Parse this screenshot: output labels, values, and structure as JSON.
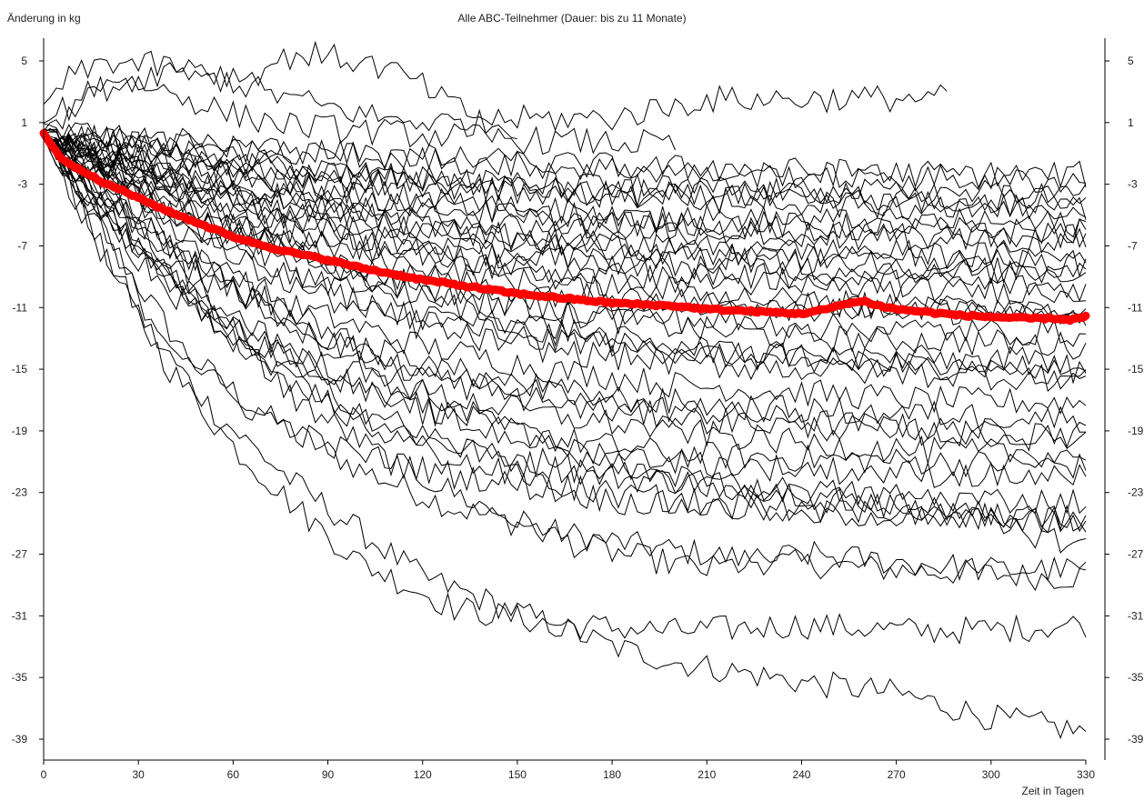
{
  "chart_data": {
    "type": "line",
    "title": "Alle ABC-Teilnehmer (Dauer: bis zu 11 Monate)",
    "ylabel": "Änderung in kg",
    "xlabel": "Zeit in Tagen",
    "xlim": [
      0,
      330
    ],
    "ylim": [
      -40,
      6
    ],
    "xticks": [
      0,
      30,
      60,
      90,
      120,
      150,
      180,
      210,
      240,
      270,
      300,
      330
    ],
    "yticks": [
      5,
      1,
      -3,
      -7,
      -11,
      -15,
      -19,
      -23,
      -27,
      -31,
      -35,
      -39
    ],
    "grid": false,
    "mean_color": "#ff0000",
    "participant_color": "#000000",
    "mean_series": {
      "x": [
        0,
        5,
        10,
        15,
        20,
        25,
        30,
        40,
        50,
        60,
        70,
        80,
        90,
        100,
        110,
        120,
        130,
        140,
        150,
        160,
        170,
        180,
        190,
        200,
        210,
        220,
        230,
        240,
        248,
        255,
        260,
        265,
        270,
        280,
        290,
        300,
        310,
        320,
        325,
        330
      ],
      "y": [
        0.3,
        -1.2,
        -1.9,
        -2.4,
        -3.0,
        -3.4,
        -3.9,
        -4.8,
        -5.6,
        -6.4,
        -7.0,
        -7.5,
        -7.9,
        -8.4,
        -8.8,
        -9.2,
        -9.5,
        -9.8,
        -10.1,
        -10.3,
        -10.5,
        -10.7,
        -10.8,
        -10.9,
        -11.1,
        -11.2,
        -11.3,
        -11.4,
        -11.1,
        -10.7,
        -10.6,
        -10.9,
        -11.1,
        -11.3,
        -11.5,
        -11.6,
        -11.7,
        -11.7,
        -11.8,
        -11.6
      ]
    },
    "participant_series": [
      {
        "x": [
          0,
          10,
          25,
          45,
          70,
          100,
          130,
          160,
          190,
          230,
          270,
          300,
          320,
          330
        ],
        "y": [
          0,
          -3,
          -8,
          -14,
          -18,
          -21.5,
          -24,
          -25.5,
          -26.5,
          -27.5,
          -28,
          -28.3,
          -28.5,
          -28.4
        ]
      },
      {
        "x": [
          0,
          15,
          35,
          55,
          80,
          100,
          120,
          140,
          160,
          180,
          200,
          240,
          270,
          300,
          330
        ],
        "y": [
          0,
          -6,
          -13,
          -18,
          -22.5,
          -25.5,
          -28.5,
          -30,
          -31.5,
          -33,
          -34,
          -35.3,
          -36,
          -37.6,
          -38.5
        ]
      },
      {
        "x": [
          0,
          10,
          25,
          40,
          60,
          80,
          100,
          130,
          160,
          200,
          240,
          280,
          310,
          330
        ],
        "y": [
          0,
          -4,
          -10,
          -15,
          -20,
          -24,
          -27.5,
          -30.5,
          -31.5,
          -32,
          -31.6,
          -32,
          -31.8,
          -31.5
        ]
      },
      {
        "x": [
          0,
          20,
          50,
          80,
          110,
          140,
          170,
          210,
          240,
          270,
          300,
          330
        ],
        "y": [
          0,
          -5,
          -11,
          -17,
          -21,
          -24,
          -26.5,
          -28,
          -27,
          -27.5,
          -28,
          -28
        ]
      },
      {
        "x": [
          0,
          15,
          35,
          60,
          90,
          120,
          150,
          180,
          220,
          260,
          300,
          330
        ],
        "y": [
          0,
          -4,
          -9,
          -13.5,
          -17,
          -19.5,
          -21,
          -22,
          -22.5,
          -23.5,
          -24.5,
          -25
        ]
      },
      {
        "x": [
          0,
          10,
          30,
          60,
          100,
          130,
          160,
          200,
          240,
          280,
          330
        ],
        "y": [
          0,
          -3,
          -8,
          -12.5,
          -16,
          -18,
          -19.5,
          -20.5,
          -20.8,
          -21,
          -21.3
        ]
      },
      {
        "x": [
          0,
          20,
          50,
          90,
          130,
          170,
          210,
          250,
          290,
          330
        ],
        "y": [
          0,
          -4,
          -9,
          -13,
          -15.5,
          -17,
          -17.8,
          -18.5,
          -19,
          -19.2
        ]
      },
      {
        "x": [
          0,
          10,
          40,
          80,
          120,
          160,
          200,
          240,
          280,
          330
        ],
        "y": [
          0,
          -2.5,
          -7,
          -11,
          -13.5,
          -15,
          -16,
          -16.5,
          -17,
          -17.2
        ]
      },
      {
        "x": [
          0,
          15,
          45,
          85,
          125,
          165,
          205,
          245,
          285,
          330
        ],
        "y": [
          0,
          -2,
          -5.5,
          -9,
          -11.5,
          -13,
          -14,
          -14.5,
          -14.8,
          -15
        ]
      },
      {
        "x": [
          0,
          20,
          50,
          90,
          130,
          170,
          210,
          250,
          290,
          330
        ],
        "y": [
          0,
          -2,
          -5,
          -8,
          -10,
          -11.5,
          -12.5,
          -13,
          -13.2,
          -13.5
        ]
      },
      {
        "x": [
          0,
          15,
          40,
          80,
          120,
          160,
          200,
          240,
          280,
          330
        ],
        "y": [
          0,
          -1.5,
          -4,
          -6.5,
          -8.5,
          -9.5,
          -10.5,
          -11,
          -11.2,
          -11.5
        ]
      },
      {
        "x": [
          0,
          20,
          50,
          90,
          130,
          170,
          210,
          250,
          290,
          330
        ],
        "y": [
          0,
          -1.2,
          -3.5,
          -5.5,
          -7,
          -8,
          -8.8,
          -9.3,
          -9.5,
          -9.7
        ]
      },
      {
        "x": [
          0,
          15,
          45,
          85,
          125,
          165,
          205,
          245,
          285,
          330
        ],
        "y": [
          0,
          -1,
          -2.8,
          -4.5,
          -5.8,
          -6.8,
          -7.4,
          -7.8,
          -8,
          -8.2
        ]
      },
      {
        "x": [
          0,
          20,
          50,
          90,
          130,
          170,
          210,
          250,
          290,
          330
        ],
        "y": [
          0,
          -0.8,
          -2,
          -3.2,
          -4.2,
          -5,
          -5.5,
          -5.8,
          -6,
          -6.1
        ]
      },
      {
        "x": [
          0,
          15,
          45,
          85,
          125,
          165,
          205,
          245,
          285,
          330
        ],
        "y": [
          0.5,
          0,
          -1,
          -2,
          -2.8,
          -3.5,
          -3.9,
          -4.2,
          -4.4,
          -4.5
        ]
      },
      {
        "x": [
          0,
          10,
          30,
          70,
          110,
          150,
          190,
          230,
          270,
          330
        ],
        "y": [
          1,
          0.5,
          -0.2,
          -0.8,
          -1.2,
          -1.6,
          -1.9,
          -2.1,
          -2.3,
          -2.4
        ]
      },
      {
        "x": [
          0,
          10,
          20,
          40,
          60,
          80,
          100,
          120,
          140,
          160,
          180,
          200
        ],
        "y": [
          0.5,
          2,
          4,
          3,
          1.5,
          0.8,
          0.5,
          0.2,
          0,
          -0.2,
          -0.3,
          -0.4
        ]
      },
      {
        "x": [
          0,
          5,
          20,
          45,
          70,
          90,
          110,
          130,
          150
        ],
        "y": [
          2,
          3.5,
          5,
          4.5,
          3,
          2,
          1.2,
          1,
          0.8
        ]
      },
      {
        "x": [
          0,
          15,
          40,
          65,
          80,
          100,
          115,
          130,
          140,
          180,
          210,
          287
        ],
        "y": [
          1,
          3,
          4.5,
          4,
          5.5,
          5,
          4,
          2,
          1.2,
          1.3,
          2.5,
          2.6
        ]
      },
      {
        "x": [
          0,
          15,
          35,
          60,
          90,
          120,
          150,
          180,
          210,
          240,
          270,
          300,
          330
        ],
        "y": [
          0,
          -5,
          -12,
          -17,
          -20,
          -21.5,
          -22.5,
          -23.5,
          -24,
          -24.3,
          -24.5,
          -24.8,
          -25
        ]
      },
      {
        "x": [
          0,
          20,
          50,
          90,
          130,
          170,
          210,
          250,
          290,
          330
        ],
        "y": [
          0,
          -3.5,
          -8.5,
          -13.5,
          -17.5,
          -20.5,
          -22.5,
          -23.5,
          -24.5,
          -26.5
        ]
      },
      {
        "x": [
          0,
          12,
          30,
          55,
          85,
          120,
          160,
          200,
          240,
          280,
          330
        ],
        "y": [
          0,
          -3,
          -7.5,
          -11.5,
          -14.5,
          -16.5,
          -18,
          -19,
          -19.8,
          -20.3,
          -20.5
        ]
      },
      {
        "x": [
          0,
          25,
          60,
          100,
          140,
          180,
          220,
          260,
          300,
          330
        ],
        "y": [
          0,
          -2.5,
          -6,
          -9,
          -11.5,
          -13,
          -14,
          -14.6,
          -15.2,
          -15.5
        ]
      },
      {
        "x": [
          0,
          25,
          60,
          100,
          140,
          180,
          220,
          260,
          300,
          330
        ],
        "y": [
          0,
          -1.8,
          -4.2,
          -6.5,
          -8.3,
          -9.5,
          -10.3,
          -10.8,
          -11.1,
          -11.3
        ]
      },
      {
        "x": [
          0,
          25,
          60,
          100,
          140,
          180,
          220,
          260,
          300,
          330
        ],
        "y": [
          0,
          -1.5,
          -3.2,
          -5,
          -6.3,
          -7.2,
          -7.8,
          -8.2,
          -8.5,
          -8.7
        ]
      },
      {
        "x": [
          0,
          25,
          60,
          100,
          140,
          180,
          220,
          260,
          300,
          330
        ],
        "y": [
          0,
          -1,
          -2.5,
          -3.8,
          -4.8,
          -5.5,
          -6,
          -6.4,
          -6.6,
          -6.8
        ]
      },
      {
        "x": [
          0,
          25,
          60,
          100,
          140,
          180,
          220,
          260,
          300,
          330
        ],
        "y": [
          0,
          -0.6,
          -1.6,
          -2.5,
          -3.2,
          -3.7,
          -4,
          -4.3,
          -4.5,
          -4.6
        ]
      },
      {
        "x": [
          0,
          25,
          60,
          100,
          140,
          180,
          220,
          260,
          300,
          330
        ],
        "y": [
          0.5,
          0.2,
          -0.5,
          -1.1,
          -1.6,
          -2,
          -2.3,
          -2.5,
          -2.7,
          -2.8
        ]
      },
      {
        "x": [
          0,
          15,
          40,
          70,
          100,
          130,
          170,
          210,
          250,
          290,
          330
        ],
        "y": [
          0,
          -3.5,
          -9,
          -14,
          -17.5,
          -20,
          -21.5,
          -22.5,
          -23,
          -23.4,
          -23.6
        ]
      },
      {
        "x": [
          0,
          15,
          40,
          70,
          100,
          130,
          170,
          210,
          250,
          290,
          330
        ],
        "y": [
          0,
          -2.8,
          -7,
          -11,
          -14,
          -16,
          -17.5,
          -18.3,
          -18.8,
          -19.2,
          -19.5
        ]
      },
      {
        "x": [
          0,
          15,
          40,
          70,
          100,
          130,
          170,
          210,
          250,
          290,
          330
        ],
        "y": [
          0,
          -2.2,
          -5.5,
          -8.8,
          -11.2,
          -12.8,
          -14,
          -14.7,
          -15.1,
          -15.4,
          -15.6
        ]
      },
      {
        "x": [
          0,
          15,
          40,
          70,
          100,
          130,
          170,
          210,
          250,
          290,
          330
        ],
        "y": [
          0,
          -1.8,
          -4.5,
          -7,
          -9,
          -10.3,
          -11.3,
          -11.9,
          -12.3,
          -12.5,
          -12.7
        ]
      },
      {
        "x": [
          0,
          15,
          40,
          70,
          100,
          130,
          170,
          210,
          250,
          290,
          330
        ],
        "y": [
          0,
          -1.4,
          -3.5,
          -5.5,
          -7,
          -8,
          -8.8,
          -9.3,
          -9.6,
          -9.8,
          -10
        ]
      },
      {
        "x": [
          0,
          15,
          40,
          70,
          100,
          130,
          170,
          210,
          250,
          290,
          330
        ],
        "y": [
          0,
          -1.1,
          -2.7,
          -4.2,
          -5.4,
          -6.2,
          -6.8,
          -7.2,
          -7.4,
          -7.6,
          -7.7
        ]
      },
      {
        "x": [
          0,
          15,
          40,
          70,
          100,
          130,
          170,
          210,
          250,
          290,
          330
        ],
        "y": [
          0,
          -0.7,
          -1.8,
          -2.9,
          -3.8,
          -4.4,
          -4.9,
          -5.2,
          -5.4,
          -5.5,
          -5.6
        ]
      },
      {
        "x": [
          0,
          15,
          40,
          70,
          100,
          130,
          170,
          210,
          250,
          290,
          330
        ],
        "y": [
          0.5,
          0,
          -0.9,
          -1.7,
          -2.3,
          -2.8,
          -3.1,
          -3.3,
          -3.5,
          -3.6,
          -3.7
        ]
      },
      {
        "x": [
          0,
          20,
          45,
          75,
          105,
          140,
          175,
          215,
          255,
          295,
          330
        ],
        "y": [
          0,
          -4.5,
          -10.5,
          -15.5,
          -19,
          -21.5,
          -23,
          -23.8,
          -24.2,
          -24.5,
          -24.7
        ]
      },
      {
        "x": [
          0,
          20,
          45,
          75,
          105,
          140,
          175,
          215,
          255,
          295,
          330
        ],
        "y": [
          0,
          -3.8,
          -9,
          -13.5,
          -16.8,
          -19,
          -20.4,
          -21.2,
          -21.6,
          -21.9,
          -22.1
        ]
      },
      {
        "x": [
          0,
          20,
          45,
          75,
          105,
          140,
          175,
          215,
          255,
          295,
          330
        ],
        "y": [
          0,
          -3,
          -7.2,
          -11,
          -13.8,
          -15.6,
          -16.8,
          -17.4,
          -17.8,
          -18,
          -18.2
        ]
      },
      {
        "x": [
          0,
          20,
          45,
          75,
          105,
          140,
          175,
          215,
          255,
          295,
          330
        ],
        "y": [
          0,
          -2.4,
          -5.8,
          -8.8,
          -11,
          -12.5,
          -13.4,
          -13.9,
          -14.2,
          -14.4,
          -14.5
        ]
      },
      {
        "x": [
          0,
          20,
          45,
          75,
          105,
          140,
          175,
          215,
          255,
          295,
          330
        ],
        "y": [
          0,
          -1.9,
          -4.5,
          -6.8,
          -8.5,
          -9.6,
          -10.3,
          -10.7,
          -10.9,
          -11.1,
          -11.2
        ]
      },
      {
        "x": [
          0,
          20,
          45,
          75,
          105,
          140,
          175,
          215,
          255,
          295,
          330
        ],
        "y": [
          0,
          -1.5,
          -3.5,
          -5.3,
          -6.6,
          -7.5,
          -8,
          -8.3,
          -8.5,
          -8.6,
          -8.7
        ]
      },
      {
        "x": [
          0,
          20,
          45,
          75,
          105,
          140,
          175,
          215,
          255,
          295,
          330
        ],
        "y": [
          0,
          -1.1,
          -2.6,
          -3.9,
          -4.9,
          -5.5,
          -5.9,
          -6.1,
          -6.3,
          -6.4,
          -6.4
        ]
      },
      {
        "x": [
          0,
          20,
          45,
          75,
          105,
          140,
          175,
          215,
          255,
          295,
          330
        ],
        "y": [
          0.5,
          -0.2,
          -1.2,
          -2.1,
          -2.8,
          -3.2,
          -3.5,
          -3.7,
          -3.8,
          -3.9,
          -3.9
        ]
      }
    ]
  }
}
